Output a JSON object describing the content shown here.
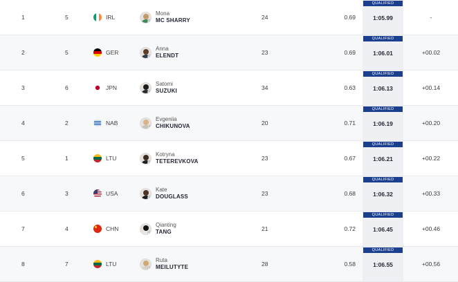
{
  "qualified_label": "QUALIFIED",
  "rows": [
    {
      "rank": "1",
      "lane": "5",
      "flag": "ireland-flag-icon",
      "country": "IRL",
      "first": "Mona",
      "last": "MC SHARRY",
      "age": "24",
      "reaction": "0.69",
      "time": "1:05.99",
      "diff": "-"
    },
    {
      "rank": "2",
      "lane": "5",
      "flag": "germany-flag-icon",
      "country": "GER",
      "first": "Anna",
      "last": "ELENDT",
      "age": "23",
      "reaction": "0.69",
      "time": "1:06.01",
      "diff": "+00.02"
    },
    {
      "rank": "3",
      "lane": "6",
      "flag": "japan-flag-icon",
      "country": "JPN",
      "first": "Satomi",
      "last": "SUZUKI",
      "age": "34",
      "reaction": "0.63",
      "time": "1:06.13",
      "diff": "+00.14"
    },
    {
      "rank": "4",
      "lane": "2",
      "flag": "neutral-athletes-flag-icon",
      "country": "NAB",
      "first": "Evgeniia",
      "last": "CHIKUNOVA",
      "age": "20",
      "reaction": "0.71",
      "time": "1:06.19",
      "diff": "+00.20"
    },
    {
      "rank": "5",
      "lane": "1",
      "flag": "lithuania-flag-icon",
      "country": "LTU",
      "first": "Kotryna",
      "last": "TETEREVKOVA",
      "age": "23",
      "reaction": "0.67",
      "time": "1:06.21",
      "diff": "+00.22"
    },
    {
      "rank": "6",
      "lane": "3",
      "flag": "usa-flag-icon",
      "country": "USA",
      "first": "Kate",
      "last": "DOUGLASS",
      "age": "23",
      "reaction": "0.68",
      "time": "1:06.32",
      "diff": "+00.33"
    },
    {
      "rank": "7",
      "lane": "4",
      "flag": "china-flag-icon",
      "country": "CHN",
      "first": "Qianting",
      "last": "TANG",
      "age": "21",
      "reaction": "0.72",
      "time": "1:06.45",
      "diff": "+00.46"
    },
    {
      "rank": "8",
      "lane": "7",
      "flag": "lithuania-flag-icon",
      "country": "LTU",
      "first": "Ruta",
      "last": "MEILUTYTE",
      "age": "28",
      "reaction": "0.58",
      "time": "1:06.55",
      "diff": "+00.56"
    }
  ],
  "colors": {
    "qualified_badge": "#1b3f8f",
    "time_column": "#eef0f3",
    "alt_row": "#f7f8fa"
  }
}
